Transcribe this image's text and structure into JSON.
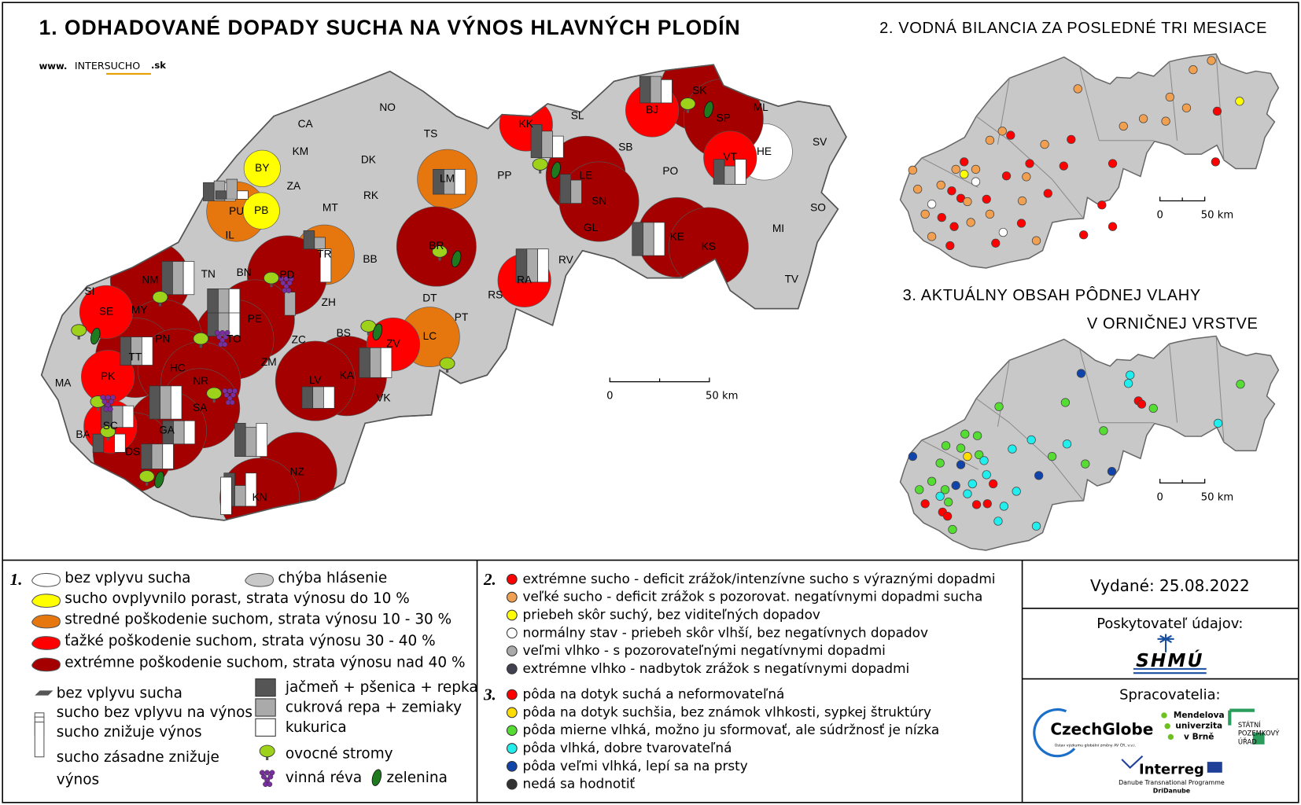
{
  "map1": {
    "title": "1. ODHADOVANÉ DOPADY SUCHA NA VÝNOS HLAVNÝCH PLODÍN",
    "web": [
      "www.",
      "INTERSUCHO",
      ".sk"
    ],
    "scale": [
      "0",
      "50 km"
    ],
    "districts": [
      {
        "label": "NO",
        "color": "#c8c8c8"
      },
      {
        "label": "CA",
        "color": "#c8c8c8"
      },
      {
        "label": "TS",
        "color": "#c8c8c8"
      },
      {
        "label": "KM",
        "color": "#c8c8c8"
      },
      {
        "label": "DK",
        "color": "#c8c8c8"
      },
      {
        "label": "BY",
        "color": "#ffff00"
      },
      {
        "label": "ZA",
        "color": "#c8c8c8"
      },
      {
        "label": "LM",
        "color": "#e6770f"
      },
      {
        "label": "PP",
        "color": "#c8c8c8"
      },
      {
        "label": "RK",
        "color": "#c8c8c8"
      },
      {
        "label": "MT",
        "color": "#c8c8c8"
      },
      {
        "label": "PU",
        "color": "#e6770f"
      },
      {
        "label": "PB",
        "color": "#ffff00"
      },
      {
        "label": "SL",
        "color": "#c8c8c8"
      },
      {
        "label": "KK",
        "color": "#ff0000"
      },
      {
        "label": "BJ",
        "color": "#ff0000"
      },
      {
        "label": "SK",
        "color": "#a50000"
      },
      {
        "label": "SP",
        "color": "#a50000"
      },
      {
        "label": "ML",
        "color": "#c8c8c8"
      },
      {
        "label": "SB",
        "color": "#c8c8c8"
      },
      {
        "label": "PO",
        "color": "#c8c8c8"
      },
      {
        "label": "LE",
        "color": "#a50000"
      },
      {
        "label": "VT",
        "color": "#ff0000"
      },
      {
        "label": "HE",
        "color": "#ffffff"
      },
      {
        "label": "SV",
        "color": "#c8c8c8"
      },
      {
        "label": "SN",
        "color": "#a50000"
      },
      {
        "label": "SO",
        "color": "#c8c8c8"
      },
      {
        "label": "GL",
        "color": "#c8c8c8"
      },
      {
        "label": "KE",
        "color": "#a50000"
      },
      {
        "label": "KS",
        "color": "#a50000"
      },
      {
        "label": "MI",
        "color": "#c8c8c8"
      },
      {
        "label": "IL",
        "color": "#c8c8c8"
      },
      {
        "label": "TR",
        "color": "#e6770f"
      },
      {
        "label": "BB",
        "color": "#c8c8c8"
      },
      {
        "label": "BR",
        "color": "#a50000"
      },
      {
        "label": "RV",
        "color": "#c8c8c8"
      },
      {
        "label": "RA",
        "color": "#ff0000"
      },
      {
        "label": "TV",
        "color": "#c8c8c8"
      },
      {
        "label": "NM",
        "color": "#a50000"
      },
      {
        "label": "TN",
        "color": "#c8c8c8"
      },
      {
        "label": "BN",
        "color": "#c8c8c8"
      },
      {
        "label": "PD",
        "color": "#a50000"
      },
      {
        "label": "SI",
        "color": "#c8c8c8"
      },
      {
        "label": "SE",
        "color": "#ff0000"
      },
      {
        "label": "MY",
        "color": "#e6770f"
      },
      {
        "label": "ZH",
        "color": "#c8c8c8"
      },
      {
        "label": "DT",
        "color": "#c8c8c8"
      },
      {
        "label": "RS",
        "color": "#c8c8c8"
      },
      {
        "label": "PE",
        "color": "#a50000"
      },
      {
        "label": "PT",
        "color": "#c8c8c8"
      },
      {
        "label": "TO",
        "color": "#a50000"
      },
      {
        "label": "PN",
        "color": "#a50000"
      },
      {
        "label": "BS",
        "color": "#c8c8c8"
      },
      {
        "label": "ZC",
        "color": "#c8c8c8"
      },
      {
        "label": "ZV",
        "color": "#ff0000"
      },
      {
        "label": "LC",
        "color": "#e6770f"
      },
      {
        "label": "TT",
        "color": "#a50000"
      },
      {
        "label": "ZM",
        "color": "#c8c8c8"
      },
      {
        "label": "HC",
        "color": "#a50000"
      },
      {
        "label": "MA",
        "color": "#c8c8c8"
      },
      {
        "label": "PK",
        "color": "#ff0000"
      },
      {
        "label": "NR",
        "color": "#a50000"
      },
      {
        "label": "KA",
        "color": "#a50000"
      },
      {
        "label": "LV",
        "color": "#a50000"
      },
      {
        "label": "VK",
        "color": "#c8c8c8"
      },
      {
        "label": "SA",
        "color": "#a50000"
      },
      {
        "label": "GA",
        "color": "#a50000"
      },
      {
        "label": "SC",
        "color": "#ff0000"
      },
      {
        "label": "BA",
        "color": "#c8c8c8"
      },
      {
        "label": "DS",
        "color": "#a50000"
      },
      {
        "label": "NZ",
        "color": "#a50000"
      },
      {
        "label": "KN",
        "color": "#a50000"
      }
    ]
  },
  "map2": {
    "title": "2. VODNÁ BILANCIA ZA POSLEDNÉ TRI MESIACE",
    "scale": [
      "0",
      "50 km"
    ]
  },
  "map3": {
    "title": [
      "3. AKTUÁLNY OBSAH PÔDNEJ VLAHY",
      "V ORNIČNEJ VRSTVE"
    ],
    "scale": [
      "0",
      "50 km"
    ]
  },
  "legend1": {
    "number": "1.",
    "areas": [
      {
        "label": "bez vplyvu sucha",
        "color": "#ffffff"
      },
      {
        "label": "chýba hlásenie",
        "color": "#c8c8c8"
      },
      {
        "label": "sucho ovplyvnilo porast, strata výnosu do 10 %",
        "color": "#ffff00"
      },
      {
        "label": "stredné poškodenie suchom, strata výnosu 10 - 30 %",
        "color": "#e6770f"
      },
      {
        "label": "ťažké poškodenie suchom, strata výnosu 30 - 40 %",
        "color": "#ff0000"
      },
      {
        "label": "extrémne poškodenie suchom, strata výnosu nad 40 %",
        "color": "#a50000"
      }
    ],
    "bars": [
      "bez vplyvu sucha",
      "sucho bez vplyvu na výnos",
      "sucho znižuje výnos",
      [
        "sucho zásadne znižuje",
        "výnos"
      ]
    ],
    "crops": [
      {
        "label": "jačmeň + pšenica + repka",
        "color": "#555555"
      },
      {
        "label": "cukrová repa + zemiaky",
        "color": "#aaaaaa"
      },
      {
        "label": "kukurica",
        "color": "#ffffff"
      }
    ],
    "icons": [
      "ovocné stromy",
      "vinná réva",
      "zelenina"
    ]
  },
  "legend2": {
    "number": "2.",
    "items": [
      {
        "label": "extrémne sucho - deficit zrážok/intenzívne sucho s výraznými dopadmi",
        "color": "#ff0000"
      },
      {
        "label": "veľké sucho - deficit zrážok s pozorovat. negatívnymi dopadmi sucha",
        "color": "#f0a050"
      },
      {
        "label": "priebeh skôr suchý, bez viditeľných dopadov",
        "color": "#ffff00"
      },
      {
        "label": "normálny stav - priebeh skôr vlhší, bez negatívnych dopadov",
        "color": "#ffffff"
      },
      {
        "label": "veľmi vlhko - s pozorovateľnými negatívnymi dopadmi",
        "color": "#aaaaaa"
      },
      {
        "label": "extrémne vlhko - nadbytok zrážok s negatívnymi dopadmi",
        "color": "#404050"
      }
    ]
  },
  "legend3": {
    "number": "3.",
    "items": [
      {
        "label": "pôda na dotyk suchá a neformovateľná",
        "color": "#ff0000"
      },
      {
        "label": "pôda na dotyk suchšia, bez známok vlhkosti, sypkej štruktúry",
        "color": "#ffdd00"
      },
      {
        "label": "pôda mierne vlhká, možno ju sformovať, ale súdržnosť je nízka",
        "color": "#55dd33"
      },
      {
        "label": "pôda vlhká, dobre tvarovateľná",
        "color": "#22eeee"
      },
      {
        "label": "pôda veľmi vlhká, lepí sa na prsty",
        "color": "#1144aa"
      },
      {
        "label": "nedá sa hodnotiť",
        "color": "#333333"
      }
    ]
  },
  "info": {
    "issued": "Vydané: 25.08.2022",
    "provider": "Poskytovateľ údajov:",
    "provider_logo": "SHMÚ",
    "processors": "Spracovatelia:",
    "czechglobe": "CzechGlobe",
    "czechglobe_sub": "Ústav výzkumu globální změny AV ČR, v.v.i.",
    "mendel": [
      "Mendelova",
      "univerzita",
      "v Brně"
    ],
    "spu": [
      "STÁTNÍ",
      "POZEMKOVÝ",
      "ÚŘAD"
    ],
    "interreg": "Interreg",
    "interreg_sub": [
      "Danube Transnational Programme",
      "DriDanube"
    ]
  }
}
